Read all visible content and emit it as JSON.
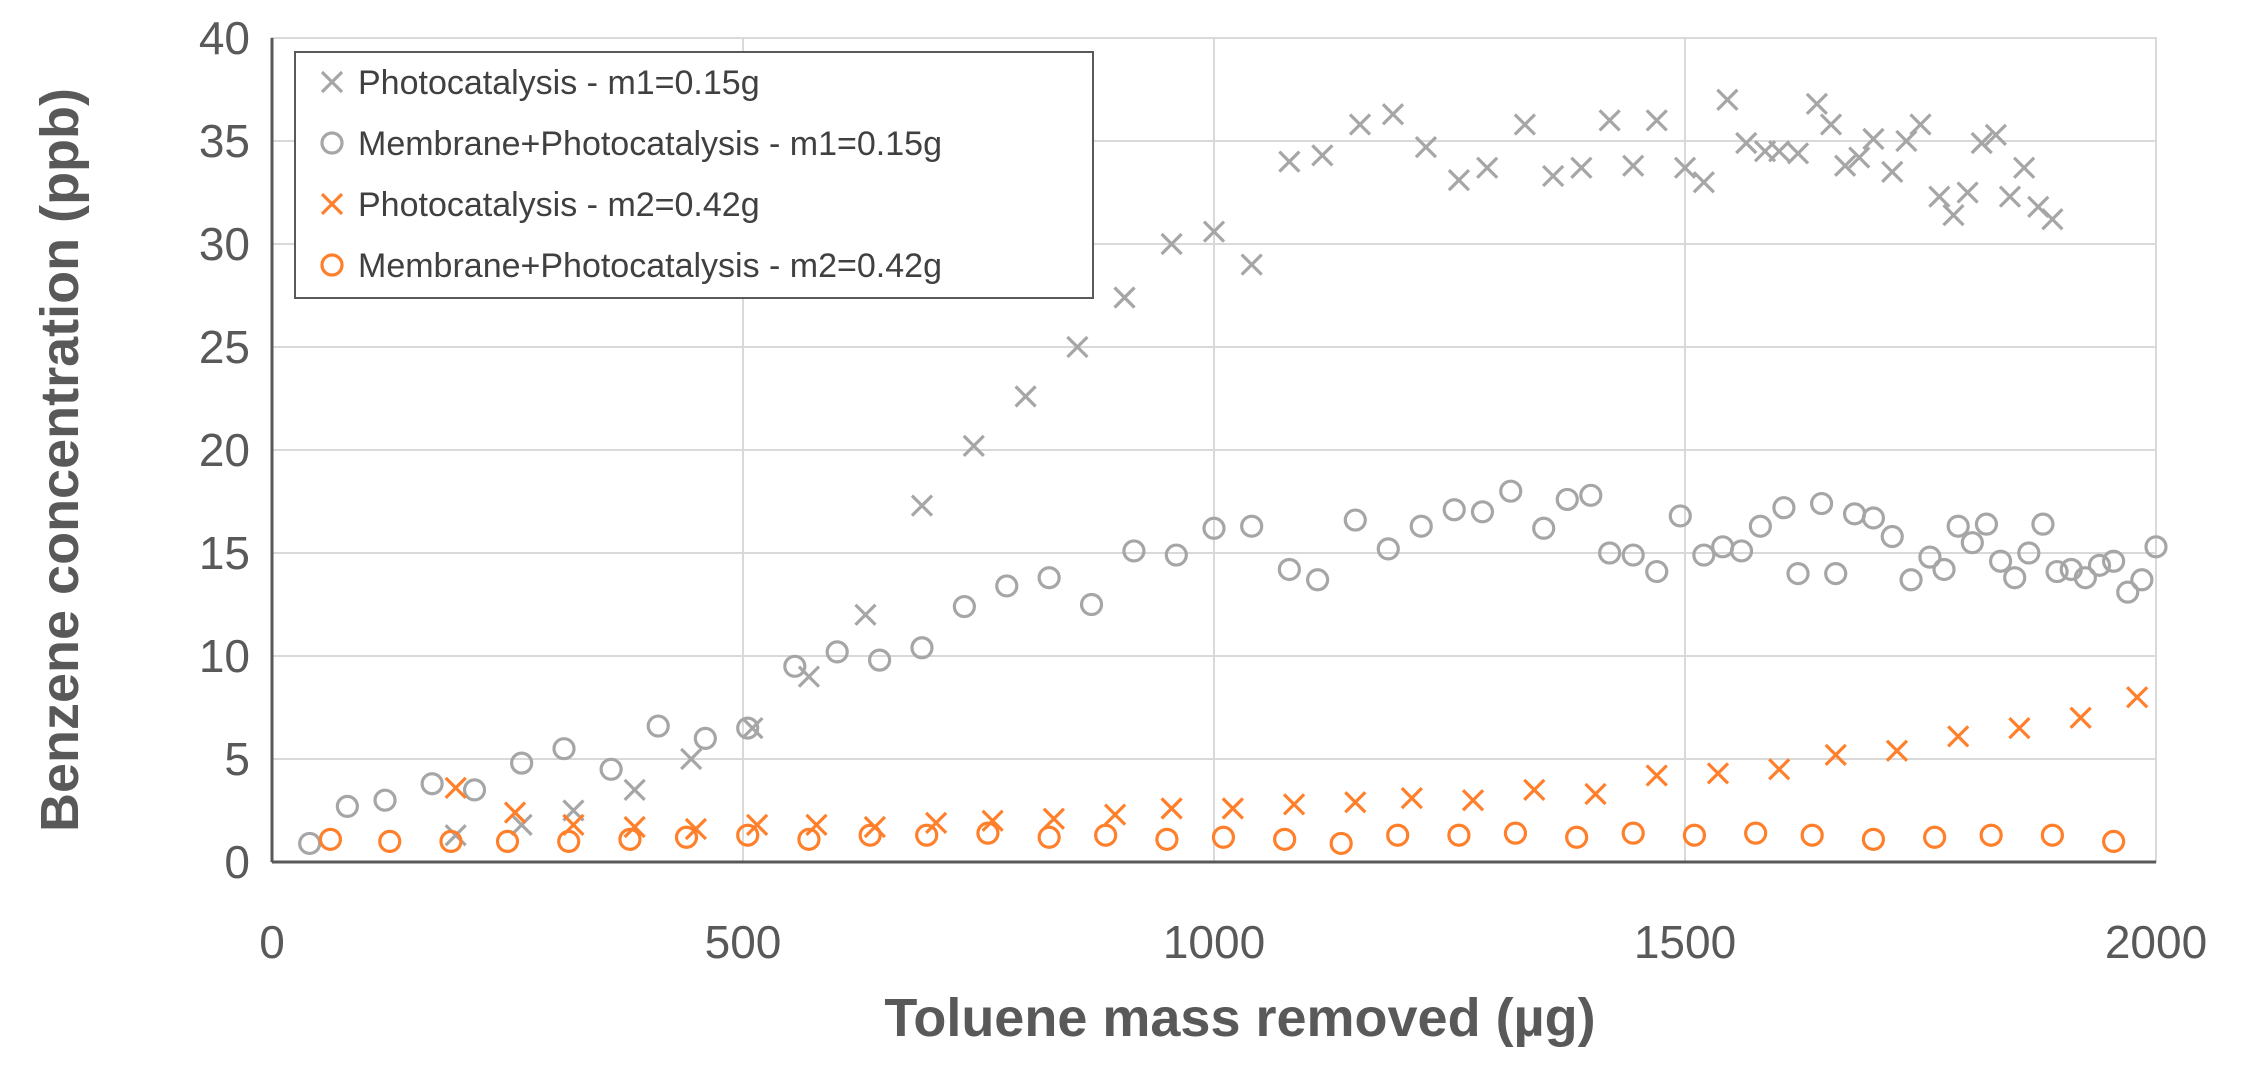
{
  "chart_data": {
    "type": "scatter",
    "title": "",
    "xlabel": "Toluene mass removed (µg)",
    "ylabel": "Benzene concentration (ppb)",
    "xlim": [
      0,
      2000
    ],
    "ylim": [
      0,
      40
    ],
    "xticks": [
      0,
      500,
      1000,
      1500,
      2000
    ],
    "yticks": [
      0,
      5,
      10,
      15,
      20,
      25,
      30,
      35,
      40
    ],
    "grid": true,
    "legend_position": "top-left",
    "colors": {
      "gray": "#a6a6a6",
      "orange": "#ff7f2a",
      "grid": "#d9d9d9",
      "axis": "#595959"
    },
    "series": [
      {
        "name": "Photocatalysis - m1=0.15g",
        "marker": "x",
        "color": "#a6a6a6",
        "points": [
          [
            195,
            1.3
          ],
          [
            265,
            1.8
          ],
          [
            320,
            2.5
          ],
          [
            385,
            3.5
          ],
          [
            445,
            5.0
          ],
          [
            510,
            6.5
          ],
          [
            570,
            9.0
          ],
          [
            630,
            12.0
          ],
          [
            690,
            17.3
          ],
          [
            745,
            20.2
          ],
          [
            800,
            22.6
          ],
          [
            855,
            25.0
          ],
          [
            905,
            27.4
          ],
          [
            955,
            30.0
          ],
          [
            1000,
            30.6
          ],
          [
            1040,
            29.0
          ],
          [
            1080,
            34.0
          ],
          [
            1115,
            34.3
          ],
          [
            1155,
            35.8
          ],
          [
            1190,
            36.3
          ],
          [
            1225,
            34.7
          ],
          [
            1260,
            33.1
          ],
          [
            1290,
            33.7
          ],
          [
            1330,
            35.8
          ],
          [
            1360,
            33.3
          ],
          [
            1390,
            33.7
          ],
          [
            1420,
            36.0
          ],
          [
            1445,
            33.8
          ],
          [
            1470,
            36.0
          ],
          [
            1500,
            33.7
          ],
          [
            1520,
            33.0
          ],
          [
            1545,
            37.0
          ],
          [
            1565,
            34.9
          ],
          [
            1585,
            34.5
          ],
          [
            1600,
            34.5
          ],
          [
            1620,
            34.4
          ],
          [
            1640,
            36.8
          ],
          [
            1655,
            35.8
          ],
          [
            1670,
            33.8
          ],
          [
            1685,
            34.2
          ],
          [
            1700,
            35.1
          ],
          [
            1720,
            33.5
          ],
          [
            1735,
            35.0
          ],
          [
            1750,
            35.8
          ],
          [
            1770,
            32.3
          ],
          [
            1785,
            31.4
          ],
          [
            1800,
            32.5
          ],
          [
            1815,
            34.9
          ],
          [
            1830,
            35.3
          ],
          [
            1845,
            32.3
          ],
          [
            1860,
            33.7
          ],
          [
            1875,
            31.8
          ],
          [
            1890,
            31.2
          ]
        ]
      },
      {
        "name": "Membrane+Photocatalysis - m1=0.15g",
        "marker": "o",
        "color": "#a6a6a6",
        "points": [
          [
            40,
            0.9
          ],
          [
            80,
            2.7
          ],
          [
            120,
            3.0
          ],
          [
            170,
            3.8
          ],
          [
            215,
            3.5
          ],
          [
            265,
            4.8
          ],
          [
            310,
            5.5
          ],
          [
            360,
            4.5
          ],
          [
            410,
            6.6
          ],
          [
            460,
            6.0
          ],
          [
            505,
            6.5
          ],
          [
            555,
            9.5
          ],
          [
            600,
            10.2
          ],
          [
            645,
            9.8
          ],
          [
            690,
            10.4
          ],
          [
            735,
            12.4
          ],
          [
            780,
            13.4
          ],
          [
            825,
            13.8
          ],
          [
            870,
            12.5
          ],
          [
            915,
            15.1
          ],
          [
            960,
            14.9
          ],
          [
            1000,
            16.2
          ],
          [
            1040,
            16.3
          ],
          [
            1080,
            14.2
          ],
          [
            1110,
            13.7
          ],
          [
            1150,
            16.6
          ],
          [
            1185,
            15.2
          ],
          [
            1220,
            16.3
          ],
          [
            1255,
            17.1
          ],
          [
            1285,
            17.0
          ],
          [
            1315,
            18.0
          ],
          [
            1350,
            16.2
          ],
          [
            1375,
            17.6
          ],
          [
            1400,
            17.8
          ],
          [
            1420,
            15.0
          ],
          [
            1445,
            14.9
          ],
          [
            1470,
            14.1
          ],
          [
            1495,
            16.8
          ],
          [
            1520,
            14.9
          ],
          [
            1540,
            15.3
          ],
          [
            1560,
            15.1
          ],
          [
            1580,
            16.3
          ],
          [
            1605,
            17.2
          ],
          [
            1620,
            14.0
          ],
          [
            1645,
            17.4
          ],
          [
            1660,
            14.0
          ],
          [
            1680,
            16.9
          ],
          [
            1700,
            16.7
          ],
          [
            1720,
            15.8
          ],
          [
            1740,
            13.7
          ],
          [
            1760,
            14.8
          ],
          [
            1775,
            14.2
          ],
          [
            1790,
            16.3
          ],
          [
            1805,
            15.5
          ],
          [
            1820,
            16.4
          ],
          [
            1835,
            14.6
          ],
          [
            1850,
            13.8
          ],
          [
            1865,
            15.0
          ],
          [
            1880,
            16.4
          ],
          [
            1895,
            14.1
          ],
          [
            1910,
            14.2
          ],
          [
            1925,
            13.8
          ],
          [
            1940,
            14.4
          ],
          [
            1955,
            14.6
          ],
          [
            1970,
            13.1
          ],
          [
            1985,
            13.7
          ],
          [
            2000,
            15.3
          ]
        ]
      },
      {
        "name": "Photocatalysis - m2=0.42g",
        "marker": "x",
        "color": "#ff7f2a",
        "points": [
          [
            195,
            3.6
          ],
          [
            258,
            2.4
          ],
          [
            320,
            1.8
          ],
          [
            385,
            1.7
          ],
          [
            450,
            1.6
          ],
          [
            515,
            1.8
          ],
          [
            578,
            1.8
          ],
          [
            640,
            1.7
          ],
          [
            705,
            1.9
          ],
          [
            765,
            2.0
          ],
          [
            830,
            2.1
          ],
          [
            895,
            2.3
          ],
          [
            955,
            2.6
          ],
          [
            1020,
            2.6
          ],
          [
            1085,
            2.8
          ],
          [
            1150,
            2.9
          ],
          [
            1210,
            3.1
          ],
          [
            1275,
            3.0
          ],
          [
            1340,
            3.5
          ],
          [
            1405,
            3.3
          ],
          [
            1470,
            4.2
          ],
          [
            1535,
            4.3
          ],
          [
            1600,
            4.5
          ],
          [
            1660,
            5.2
          ],
          [
            1725,
            5.4
          ],
          [
            1790,
            6.1
          ],
          [
            1855,
            6.5
          ],
          [
            1920,
            7.0
          ],
          [
            1980,
            8.0
          ]
        ]
      },
      {
        "name": "Membrane+Photocatalysis - m2=0.42g",
        "marker": "o",
        "color": "#ff7f2a",
        "points": [
          [
            62,
            1.1
          ],
          [
            125,
            1.0
          ],
          [
            190,
            1.0
          ],
          [
            250,
            1.0
          ],
          [
            315,
            1.0
          ],
          [
            380,
            1.1
          ],
          [
            440,
            1.2
          ],
          [
            505,
            1.3
          ],
          [
            570,
            1.1
          ],
          [
            635,
            1.3
          ],
          [
            695,
            1.3
          ],
          [
            760,
            1.4
          ],
          [
            825,
            1.2
          ],
          [
            885,
            1.3
          ],
          [
            950,
            1.1
          ],
          [
            1010,
            1.2
          ],
          [
            1075,
            1.1
          ],
          [
            1135,
            0.9
          ],
          [
            1195,
            1.3
          ],
          [
            1260,
            1.3
          ],
          [
            1320,
            1.4
          ],
          [
            1385,
            1.2
          ],
          [
            1445,
            1.4
          ],
          [
            1510,
            1.3
          ],
          [
            1575,
            1.4
          ],
          [
            1635,
            1.3
          ],
          [
            1700,
            1.1
          ],
          [
            1765,
            1.2
          ],
          [
            1825,
            1.3
          ],
          [
            1890,
            1.3
          ],
          [
            1955,
            1.0
          ]
        ]
      }
    ]
  }
}
